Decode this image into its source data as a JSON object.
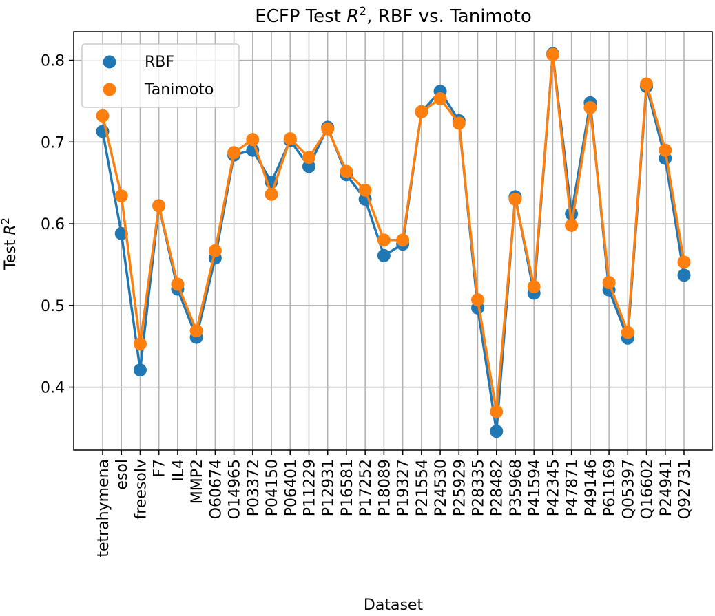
{
  "chart_data": {
    "type": "line",
    "title_main": "ECFP Test ",
    "title_r": "R",
    "title_sup": "2",
    "title_rest": ", RBF vs. Tanimoto",
    "xlabel": "Dataset",
    "ylabel_main": "Test ",
    "ylabel_r": "R",
    "ylabel_sup": "2",
    "ylim": [
      0.323,
      0.835
    ],
    "yticks": [
      "0.4",
      "0.5",
      "0.6",
      "0.7",
      "0.8"
    ],
    "grid": true,
    "legend_position": "top-left",
    "categories": [
      "tetrahymena",
      "esol",
      "freesolv",
      "F7",
      "IL4",
      "MMP2",
      "O60674",
      "O14965",
      "P03372",
      "P04150",
      "P06401",
      "P11229",
      "P12931",
      "P16581",
      "P17252",
      "P18089",
      "P19327",
      "P21554",
      "P24530",
      "P25929",
      "P28335",
      "P28482",
      "P35968",
      "P41594",
      "P42345",
      "P47871",
      "P49146",
      "P61169",
      "Q05397",
      "Q16602",
      "P24941",
      "Q92731"
    ],
    "series": [
      {
        "name": "RBF",
        "color": "#1f77b4",
        "values": [
          0.713,
          0.588,
          0.421,
          0.622,
          0.52,
          0.461,
          0.558,
          0.684,
          0.69,
          0.651,
          0.702,
          0.67,
          0.718,
          0.66,
          0.63,
          0.561,
          0.575,
          0.737,
          0.762,
          0.726,
          0.497,
          0.346,
          0.633,
          0.515,
          0.808,
          0.612,
          0.748,
          0.519,
          0.46,
          0.768,
          0.68,
          0.537
        ]
      },
      {
        "name": "Tanimoto",
        "color": "#ff7f0e",
        "values": [
          0.732,
          0.634,
          0.453,
          0.622,
          0.526,
          0.469,
          0.567,
          0.687,
          0.703,
          0.636,
          0.704,
          0.681,
          0.716,
          0.664,
          0.641,
          0.58,
          0.58,
          0.737,
          0.753,
          0.723,
          0.507,
          0.37,
          0.63,
          0.523,
          0.807,
          0.598,
          0.742,
          0.528,
          0.467,
          0.771,
          0.69,
          0.553
        ]
      }
    ]
  }
}
